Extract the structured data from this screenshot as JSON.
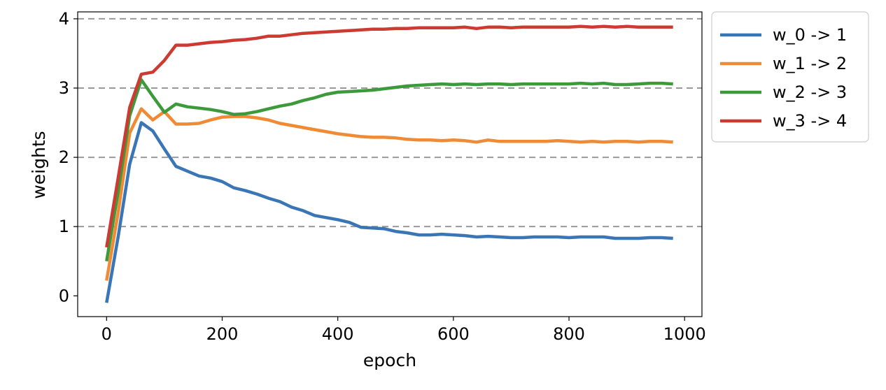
{
  "chart_data": {
    "type": "line",
    "xlabel": "epoch",
    "ylabel": "weights",
    "xlim": [
      -50,
      1030
    ],
    "ylim": [
      -0.3,
      4.1
    ],
    "xticks": [
      0,
      200,
      400,
      600,
      800,
      1000
    ],
    "yticks": [
      0,
      1,
      2,
      3,
      4
    ],
    "xtick_labels": [
      "0",
      "200",
      "400",
      "600",
      "800",
      "1000"
    ],
    "ytick_labels": [
      "0",
      "1",
      "2",
      "3",
      "4"
    ],
    "grid": "horizontal dashed at y = 1, 2, 3, 4",
    "legend_placement": "outside right, top",
    "colors": {
      "w_0 -> 1": "#3a76b5",
      "w_1 -> 2": "#f08a34",
      "w_2 -> 3": "#3d9a3a",
      "w_3 -> 4": "#cd3a32",
      "grid": "#999999"
    },
    "x": [
      0,
      20,
      40,
      60,
      80,
      100,
      120,
      140,
      160,
      180,
      200,
      220,
      240,
      260,
      280,
      300,
      320,
      340,
      360,
      380,
      400,
      420,
      440,
      460,
      480,
      500,
      520,
      540,
      560,
      580,
      600,
      620,
      640,
      660,
      680,
      700,
      720,
      740,
      760,
      780,
      800,
      820,
      840,
      860,
      880,
      900,
      920,
      940,
      960,
      980
    ],
    "series": [
      {
        "name": "w_0 -> 1",
        "values": [
          -0.1,
          0.85,
          1.9,
          2.5,
          2.38,
          2.12,
          1.87,
          1.8,
          1.73,
          1.7,
          1.65,
          1.56,
          1.52,
          1.47,
          1.41,
          1.36,
          1.28,
          1.23,
          1.16,
          1.13,
          1.1,
          1.06,
          0.99,
          0.98,
          0.97,
          0.93,
          0.91,
          0.88,
          0.88,
          0.89,
          0.88,
          0.87,
          0.85,
          0.86,
          0.85,
          0.84,
          0.84,
          0.85,
          0.85,
          0.85,
          0.84,
          0.85,
          0.85,
          0.85,
          0.83,
          0.83,
          0.83,
          0.84,
          0.84,
          0.83
        ]
      },
      {
        "name": "w_1 -> 2",
        "values": [
          0.22,
          1.2,
          2.35,
          2.7,
          2.54,
          2.66,
          2.48,
          2.48,
          2.49,
          2.54,
          2.58,
          2.59,
          2.59,
          2.57,
          2.54,
          2.49,
          2.46,
          2.43,
          2.4,
          2.37,
          2.34,
          2.32,
          2.3,
          2.29,
          2.29,
          2.28,
          2.26,
          2.25,
          2.25,
          2.24,
          2.25,
          2.24,
          2.22,
          2.25,
          2.23,
          2.23,
          2.23,
          2.23,
          2.23,
          2.24,
          2.23,
          2.22,
          2.23,
          2.22,
          2.23,
          2.23,
          2.22,
          2.23,
          2.23,
          2.22
        ]
      },
      {
        "name": "w_2 -> 3",
        "values": [
          0.5,
          1.5,
          2.6,
          3.12,
          2.88,
          2.65,
          2.77,
          2.73,
          2.71,
          2.69,
          2.66,
          2.62,
          2.63,
          2.66,
          2.7,
          2.74,
          2.77,
          2.82,
          2.86,
          2.91,
          2.94,
          2.95,
          2.96,
          2.97,
          2.99,
          3.01,
          3.03,
          3.04,
          3.05,
          3.06,
          3.05,
          3.06,
          3.05,
          3.06,
          3.06,
          3.05,
          3.06,
          3.06,
          3.06,
          3.06,
          3.06,
          3.07,
          3.06,
          3.07,
          3.05,
          3.05,
          3.06,
          3.07,
          3.07,
          3.06
        ]
      },
      {
        "name": "w_3 -> 4",
        "values": [
          0.7,
          1.7,
          2.72,
          3.2,
          3.23,
          3.4,
          3.62,
          3.62,
          3.64,
          3.66,
          3.67,
          3.69,
          3.7,
          3.72,
          3.75,
          3.75,
          3.77,
          3.79,
          3.8,
          3.81,
          3.82,
          3.83,
          3.84,
          3.85,
          3.85,
          3.86,
          3.86,
          3.87,
          3.87,
          3.87,
          3.87,
          3.88,
          3.86,
          3.88,
          3.88,
          3.87,
          3.88,
          3.88,
          3.88,
          3.88,
          3.88,
          3.89,
          3.88,
          3.89,
          3.88,
          3.89,
          3.88,
          3.88,
          3.88,
          3.88
        ]
      }
    ]
  }
}
